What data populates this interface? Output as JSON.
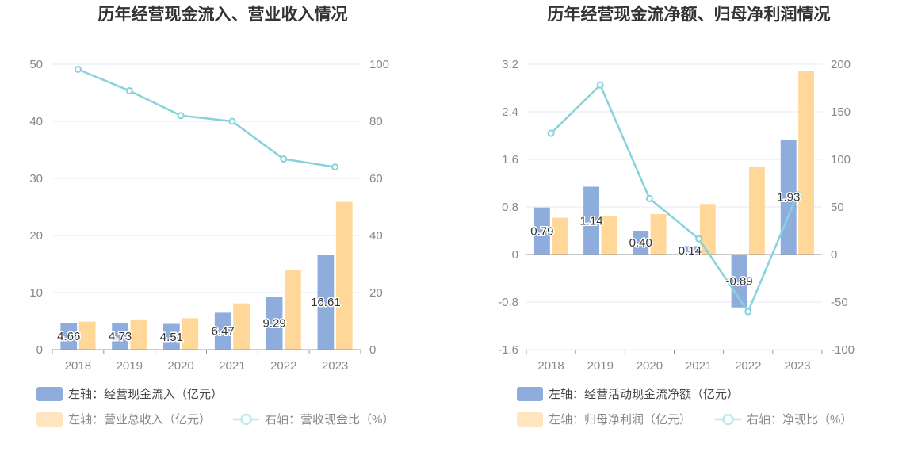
{
  "colors": {
    "bar_primary": "#8eaddc",
    "bar_secondary": "#ffd899",
    "line": "#86d3dc",
    "grid": "#e3e8f3",
    "axis": "#999999",
    "text": "#333333"
  },
  "chart_data": [
    {
      "type": "bar",
      "title": "历年经营现金流入、营业收入情况",
      "categories": [
        "2018",
        "2019",
        "2020",
        "2021",
        "2022",
        "2023"
      ],
      "ylim_left": [
        0,
        50
      ],
      "yticks_left": [
        "0",
        "10",
        "20",
        "30",
        "40",
        "50"
      ],
      "ylim_right": [
        0,
        100
      ],
      "yticks_right": [
        "0",
        "20",
        "40",
        "60",
        "80",
        "100"
      ],
      "grid": true,
      "legend_position": "bottom-left",
      "series": [
        {
          "name": "左轴：经营现金流入（亿元）",
          "kind": "bar",
          "axis": "left",
          "color": "#8eaddc",
          "values": [
            4.66,
            4.73,
            4.51,
            6.47,
            9.29,
            16.61
          ],
          "labels": [
            "4.66",
            "4.73",
            "4.51",
            "6.47",
            "9.29",
            "16.61"
          ]
        },
        {
          "name": "左轴：营业总收入（亿元）",
          "kind": "bar",
          "axis": "left",
          "color": "#ffd899",
          "values": [
            4.9,
            5.3,
            5.5,
            8.1,
            13.9,
            25.9
          ]
        },
        {
          "name": "右轴：营收现金比（%）",
          "kind": "line",
          "axis": "right",
          "color": "#86d3dc",
          "values": [
            98.2,
            90.7,
            82.0,
            80.0,
            66.8,
            64.0
          ]
        }
      ]
    },
    {
      "type": "bar",
      "title": "历年经营现金流净额、归母净利润情况",
      "categories": [
        "2018",
        "2019",
        "2020",
        "2021",
        "2022",
        "2023"
      ],
      "ylim_left": [
        -1.6,
        3.2
      ],
      "yticks_left": [
        "-1.6",
        "-0.8",
        "0",
        "0.8",
        "1.6",
        "2.4",
        "3.2"
      ],
      "ylim_right": [
        -100,
        200
      ],
      "yticks_right": [
        "-100",
        "-50",
        "0",
        "50",
        "100",
        "150",
        "200"
      ],
      "grid": true,
      "legend_position": "bottom-left",
      "series": [
        {
          "name": "左轴：经营活动现金流净额（亿元）",
          "kind": "bar",
          "axis": "left",
          "color": "#8eaddc",
          "values": [
            0.79,
            1.14,
            0.4,
            0.14,
            -0.89,
            1.93
          ],
          "labels": [
            "0.79",
            "1.14",
            "0.40",
            "0.14",
            "-0.89",
            "1.93"
          ]
        },
        {
          "name": "左轴：归母净利润（亿元）",
          "kind": "bar",
          "axis": "left",
          "color": "#ffd899",
          "values": [
            0.62,
            0.64,
            0.68,
            0.85,
            1.48,
            3.08
          ]
        },
        {
          "name": "右轴：净现比（%）",
          "kind": "line",
          "axis": "right",
          "color": "#86d3dc",
          "values": [
            127.4,
            178.1,
            58.8,
            16.5,
            -60.1,
            62.7
          ]
        }
      ]
    }
  ]
}
